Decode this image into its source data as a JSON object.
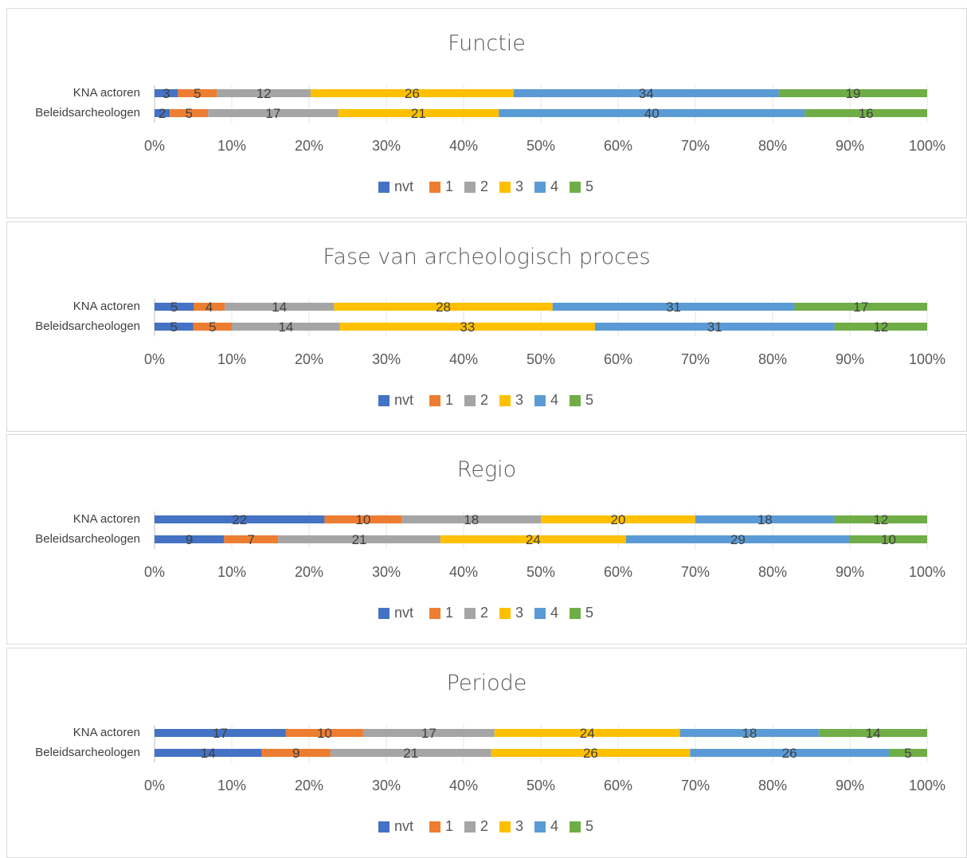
{
  "legend_labels": [
    "nvt",
    "1",
    "2",
    "3",
    "4",
    "5"
  ],
  "colors": [
    "#4472c4",
    "#ed7d31",
    "#a5a5a5",
    "#ffc000",
    "#5b9bd5",
    "#70ad47"
  ],
  "chart_data": [
    {
      "type": "bar",
      "orientation": "horizontal",
      "stacked": "percent",
      "title": "Functie",
      "categories": [
        "KNA actoren",
        "Beleidsarcheologen"
      ],
      "xlim": [
        0,
        100
      ],
      "x_ticks": [
        "0%",
        "10%",
        "20%",
        "30%",
        "40%",
        "50%",
        "60%",
        "70%",
        "80%",
        "90%",
        "100%"
      ],
      "legend_position": "bottom",
      "series": [
        {
          "name": "nvt",
          "values": [
            3,
            2
          ]
        },
        {
          "name": "1",
          "values": [
            5,
            5
          ]
        },
        {
          "name": "2",
          "values": [
            12,
            17
          ]
        },
        {
          "name": "3",
          "values": [
            26,
            21
          ]
        },
        {
          "name": "4",
          "values": [
            34,
            40
          ]
        },
        {
          "name": "5",
          "values": [
            19,
            16
          ]
        }
      ]
    },
    {
      "type": "bar",
      "orientation": "horizontal",
      "stacked": "percent",
      "title": "Fase van archeologisch proces",
      "categories": [
        "KNA actoren",
        "Beleidsarcheologen"
      ],
      "xlim": [
        0,
        100
      ],
      "x_ticks": [
        "0%",
        "10%",
        "20%",
        "30%",
        "40%",
        "50%",
        "60%",
        "70%",
        "80%",
        "90%",
        "100%"
      ],
      "legend_position": "bottom",
      "series": [
        {
          "name": "nvt",
          "values": [
            5,
            5
          ]
        },
        {
          "name": "1",
          "values": [
            4,
            5
          ]
        },
        {
          "name": "2",
          "values": [
            14,
            14
          ]
        },
        {
          "name": "3",
          "values": [
            28,
            33
          ]
        },
        {
          "name": "4",
          "values": [
            31,
            31
          ]
        },
        {
          "name": "5",
          "values": [
            17,
            12
          ]
        }
      ]
    },
    {
      "type": "bar",
      "orientation": "horizontal",
      "stacked": "percent",
      "title": "Regio",
      "categories": [
        "KNA actoren",
        "Beleidsarcheologen"
      ],
      "xlim": [
        0,
        100
      ],
      "x_ticks": [
        "0%",
        "10%",
        "20%",
        "30%",
        "40%",
        "50%",
        "60%",
        "70%",
        "80%",
        "90%",
        "100%"
      ],
      "legend_position": "bottom",
      "series": [
        {
          "name": "nvt",
          "values": [
            22,
            9
          ]
        },
        {
          "name": "1",
          "values": [
            10,
            7
          ]
        },
        {
          "name": "2",
          "values": [
            18,
            21
          ]
        },
        {
          "name": "3",
          "values": [
            20,
            24
          ]
        },
        {
          "name": "4",
          "values": [
            18,
            29
          ]
        },
        {
          "name": "5",
          "values": [
            12,
            10
          ]
        }
      ]
    },
    {
      "type": "bar",
      "orientation": "horizontal",
      "stacked": "percent",
      "title": "Periode",
      "categories": [
        "KNA actoren",
        "Beleidsarcheologen"
      ],
      "xlim": [
        0,
        100
      ],
      "x_ticks": [
        "0%",
        "10%",
        "20%",
        "30%",
        "40%",
        "50%",
        "60%",
        "70%",
        "80%",
        "90%",
        "100%"
      ],
      "legend_position": "bottom",
      "series": [
        {
          "name": "nvt",
          "values": [
            17,
            14
          ]
        },
        {
          "name": "1",
          "values": [
            10,
            9
          ]
        },
        {
          "name": "2",
          "values": [
            17,
            21
          ]
        },
        {
          "name": "3",
          "values": [
            24,
            26
          ]
        },
        {
          "name": "4",
          "values": [
            18,
            26
          ]
        },
        {
          "name": "5",
          "values": [
            14,
            5
          ]
        }
      ]
    }
  ]
}
